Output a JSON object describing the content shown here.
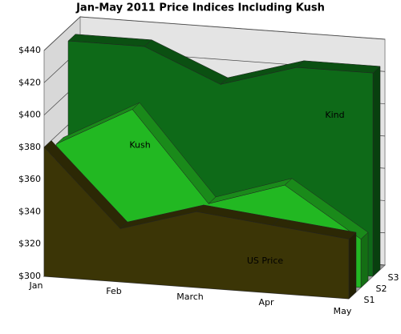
{
  "chart_data": {
    "type": "area3d",
    "title": "Jan-May 2011 Price Indices Including Kush",
    "categories": [
      "Jan",
      "Feb",
      "March",
      "Apr",
      "May"
    ],
    "depth_labels": [
      "S1",
      "S2",
      "S3"
    ],
    "series": [
      {
        "name": "US Price",
        "color": "#3b3506",
        "values": [
          380,
          333,
          347,
          342,
          337
        ]
      },
      {
        "name": "Kush",
        "color": "#22b822",
        "values": [
          375,
          400,
          345,
          360,
          330
        ]
      },
      {
        "name": "Kind",
        "color": "#0e6a18",
        "values": [
          432,
          432,
          412,
          426,
          426
        ]
      }
    ],
    "ylim": [
      300,
      440
    ],
    "yticks": [
      {
        "value": 300,
        "label": "$300"
      },
      {
        "value": 320,
        "label": "$320"
      },
      {
        "value": 340,
        "label": "$340"
      },
      {
        "value": 360,
        "label": "$360"
      },
      {
        "value": 380,
        "label": "$380"
      },
      {
        "value": 400,
        "label": "$400"
      },
      {
        "value": 420,
        "label": "$420"
      },
      {
        "value": 440,
        "label": "$440"
      }
    ],
    "grid": true
  }
}
